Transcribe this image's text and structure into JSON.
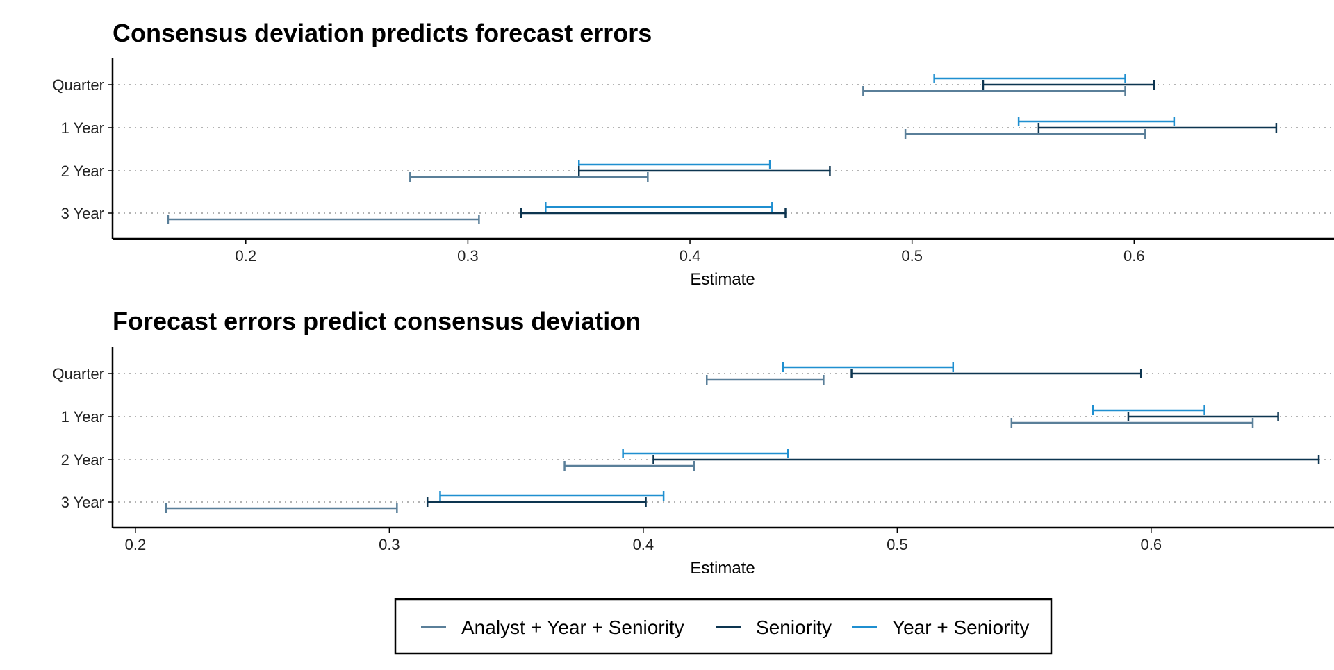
{
  "colors": {
    "Analyst + Year + Seniority": "#5a7f99",
    "Seniority": "#0d3550",
    "Year + Seniority": "#1f8fd0"
  },
  "legend": {
    "items": [
      "Analyst + Year + Seniority",
      "Seniority",
      "Year + Seniority"
    ]
  },
  "chart_data": [
    {
      "type": "errorbar",
      "title": "Consensus deviation predicts forecast errors",
      "xlabel": "Estimate",
      "ylabel": "",
      "categories": [
        "Quarter",
        "1 Year",
        "2 Year",
        "3 Year"
      ],
      "xticks": [
        0.2,
        0.3,
        0.4,
        0.5,
        0.6
      ],
      "xlim": [
        0.14,
        0.69
      ],
      "grid": "horizontal dotted",
      "series": [
        {
          "name": "Year + Seniority",
          "intervals": [
            [
              0.51,
              0.596
            ],
            [
              0.548,
              0.618
            ],
            [
              0.35,
              0.436
            ],
            [
              0.335,
              0.437
            ]
          ]
        },
        {
          "name": "Seniority",
          "intervals": [
            [
              0.532,
              0.609
            ],
            [
              0.557,
              0.664
            ],
            [
              0.35,
              0.463
            ],
            [
              0.324,
              0.443
            ]
          ]
        },
        {
          "name": "Analyst + Year + Seniority",
          "intervals": [
            [
              0.478,
              0.596
            ],
            [
              0.497,
              0.605
            ],
            [
              0.274,
              0.381
            ],
            [
              0.165,
              0.305
            ]
          ]
        }
      ]
    },
    {
      "type": "errorbar",
      "title": "Forecast errors predict consensus deviation",
      "xlabel": "Estimate",
      "ylabel": "",
      "categories": [
        "Quarter",
        "1 Year",
        "2 Year",
        "3 Year"
      ],
      "xticks": [
        0.2,
        0.3,
        0.4,
        0.5,
        0.6
      ],
      "xlim": [
        0.191,
        0.672
      ],
      "grid": "horizontal dotted",
      "series": [
        {
          "name": "Year + Seniority",
          "intervals": [
            [
              0.455,
              0.522
            ],
            [
              0.577,
              0.621
            ],
            [
              0.392,
              0.457
            ],
            [
              0.32,
              0.408
            ]
          ]
        },
        {
          "name": "Seniority",
          "intervals": [
            [
              0.482,
              0.596
            ],
            [
              0.591,
              0.65
            ],
            [
              0.404,
              0.666
            ],
            [
              0.315,
              0.401
            ]
          ]
        },
        {
          "name": "Analyst + Year + Seniority",
          "intervals": [
            [
              0.425,
              0.471
            ],
            [
              0.545,
              0.64
            ],
            [
              0.369,
              0.42
            ],
            [
              0.212,
              0.303
            ]
          ]
        }
      ]
    }
  ]
}
